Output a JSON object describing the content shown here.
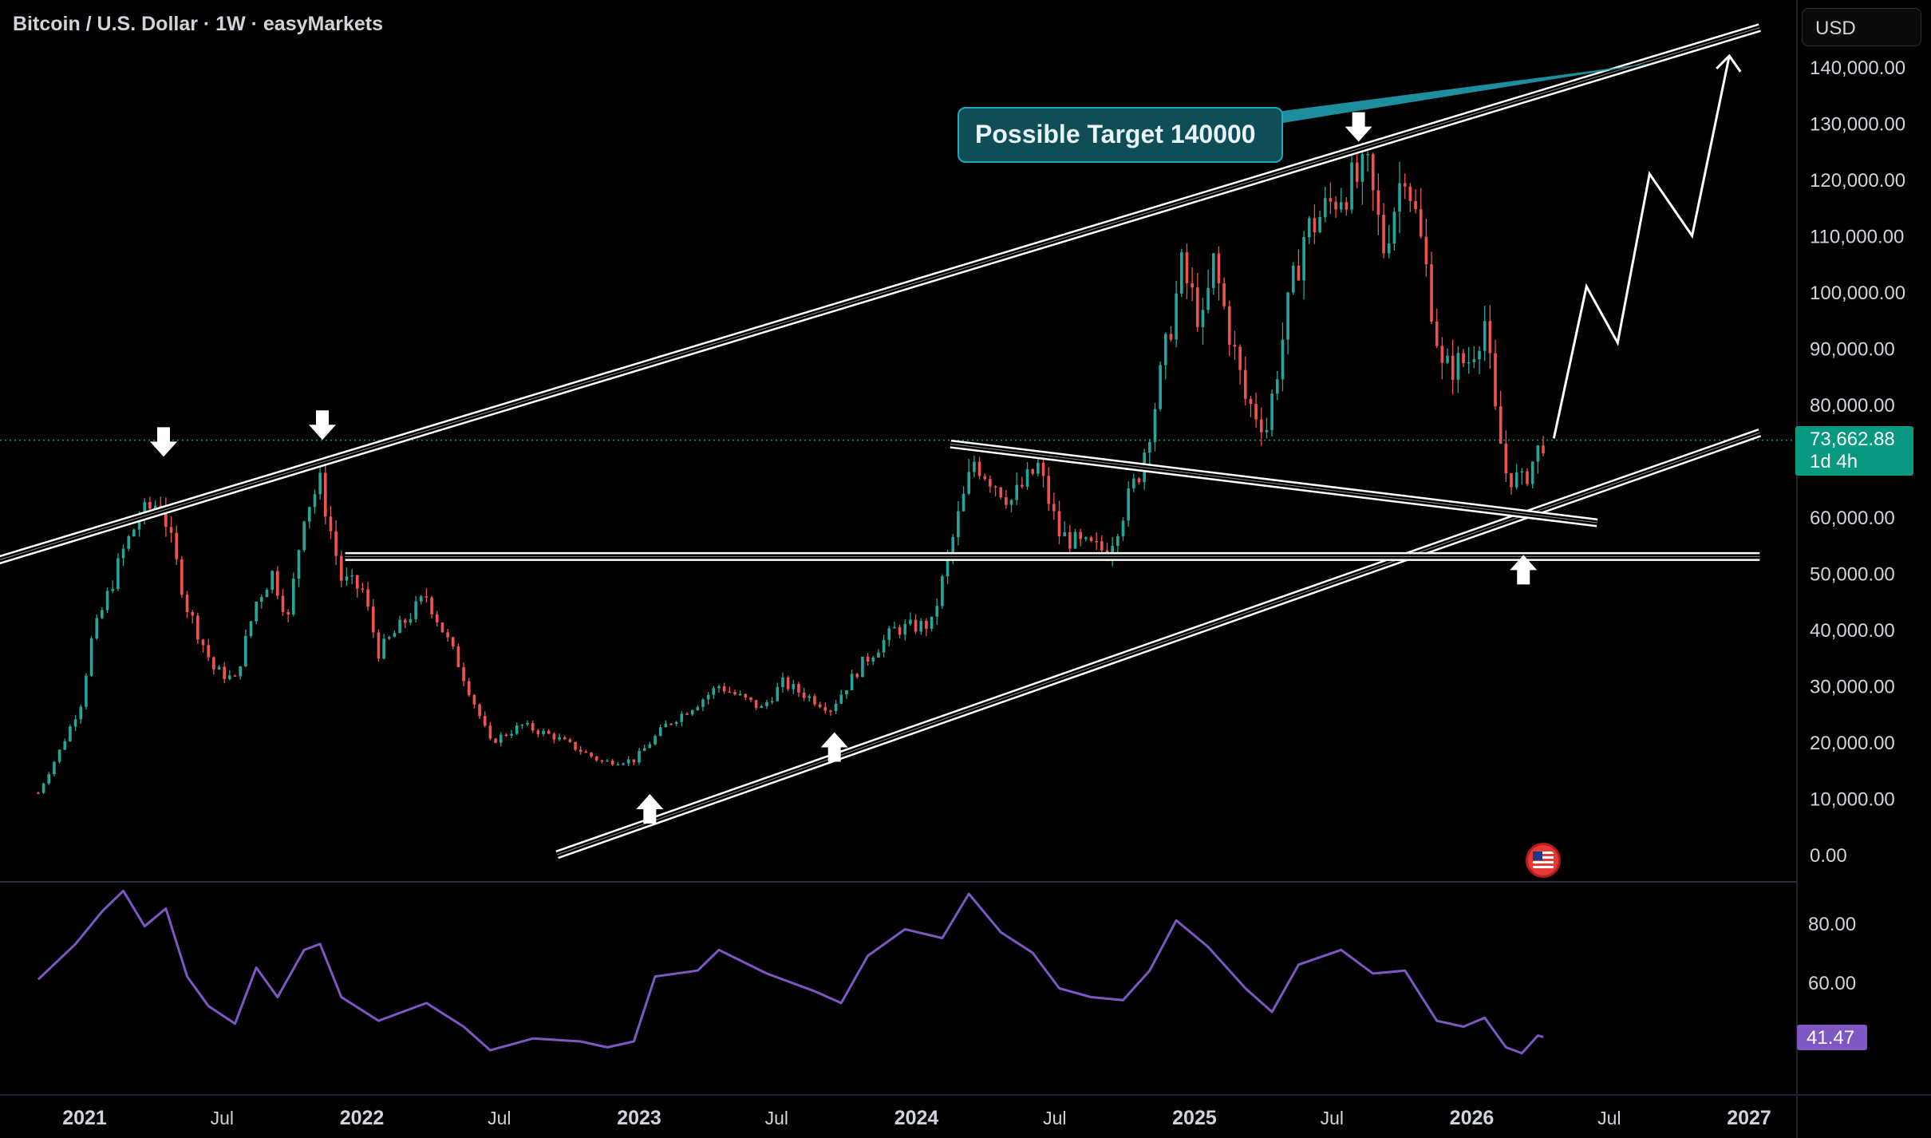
{
  "header": {
    "title": "Bitcoin / U.S. Dollar · 1W · easyMarkets"
  },
  "toolbar": {
    "currency_label": "USD"
  },
  "annotation": {
    "callout_text": "Possible Target 140000"
  },
  "price_badge": {
    "price": "73,662.88",
    "countdown": "1d 4h"
  },
  "rsi_badge": {
    "value": "41.47"
  },
  "colors": {
    "up": "#26a69a",
    "down": "#ef5350",
    "rsi": "#7e57c2",
    "badge_green": "#089981",
    "callout_bg": "#0f4d57",
    "callout_border": "#22a7b8"
  },
  "icons": [
    "us-flag-icon",
    "arrow-down-icon",
    "arrow-up-icon"
  ],
  "chart_data": {
    "type": "candlestick",
    "title": "Bitcoin / U.S. Dollar · 1W · easyMarkets",
    "price_axis": {
      "ticks": [
        "140,000.00",
        "130,000.00",
        "120,000.00",
        "110,000.00",
        "100,000.00",
        "90,000.00",
        "80,000.00",
        "70,000.00",
        "60,000.00",
        "50,000.00",
        "40,000.00",
        "30,000.00",
        "20,000.00",
        "10,000.00",
        "0.00"
      ],
      "ylim": [
        0,
        145000
      ]
    },
    "time_axis": {
      "ticks": [
        "2021",
        "Jul",
        "2022",
        "Jul",
        "2023",
        "Jul",
        "2024",
        "Jul",
        "2025",
        "Jul",
        "2026",
        "Jul",
        "2027"
      ]
    },
    "last_price": 73662.88,
    "price_path": [
      [
        "2020-11-01",
        11000
      ],
      [
        "2020-12-01",
        19000
      ],
      [
        "2020-12-27",
        27000
      ],
      [
        "2021-01-10",
        38000
      ],
      [
        "2021-02-21",
        54000
      ],
      [
        "2021-03-14",
        60000
      ],
      [
        "2021-04-11",
        63000
      ],
      [
        "2021-05-16",
        44000
      ],
      [
        "2021-06-20",
        33000
      ],
      [
        "2021-07-18",
        31000
      ],
      [
        "2021-08-15",
        45000
      ],
      [
        "2021-09-05",
        50000
      ],
      [
        "2021-09-26",
        42000
      ],
      [
        "2021-10-17",
        61000
      ],
      [
        "2021-11-07",
        66000
      ],
      [
        "2021-12-05",
        49000
      ],
      [
        "2022-01-02",
        47000
      ],
      [
        "2022-01-23",
        36000
      ],
      [
        "2022-03-27",
        46000
      ],
      [
        "2022-05-08",
        34000
      ],
      [
        "2022-06-19",
        20000
      ],
      [
        "2022-07-31",
        23000
      ],
      [
        "2022-09-11",
        21000
      ],
      [
        "2022-11-13",
        16500
      ],
      [
        "2022-12-25",
        16800
      ],
      [
        "2023-02-05",
        23000
      ],
      [
        "2023-03-19",
        27000
      ],
      [
        "2023-04-16",
        30000
      ],
      [
        "2023-06-11",
        26000
      ],
      [
        "2023-07-09",
        30500
      ],
      [
        "2023-09-10",
        26000
      ],
      [
        "2023-10-22",
        34000
      ],
      [
        "2023-12-03",
        40000
      ],
      [
        "2024-01-21",
        41000
      ],
      [
        "2024-02-25",
        60000
      ],
      [
        "2024-03-17",
        70000
      ],
      [
        "2024-05-05",
        63000
      ],
      [
        "2024-06-09",
        69000
      ],
      [
        "2024-07-07",
        57000
      ],
      [
        "2024-08-04",
        55000
      ],
      [
        "2024-09-08",
        54000
      ],
      [
        "2024-10-20",
        68000
      ],
      [
        "2024-11-10",
        80000
      ],
      [
        "2024-12-15",
        104000
      ],
      [
        "2025-01-12",
        94000
      ],
      [
        "2025-01-26",
        105000
      ],
      [
        "2025-03-09",
        81000
      ],
      [
        "2025-04-06",
        76000
      ],
      [
        "2025-05-04",
        97000
      ],
      [
        "2025-05-25",
        110000
      ],
      [
        "2025-07-13",
        118000
      ],
      [
        "2025-08-17",
        121000
      ],
      [
        "2025-09-07",
        108000
      ],
      [
        "2025-10-05",
        123000
      ],
      [
        "2025-11-02",
        104000
      ],
      [
        "2025-11-23",
        86000
      ],
      [
        "2025-12-28",
        88000
      ],
      [
        "2026-01-18",
        95000
      ],
      [
        "2026-02-01",
        78000
      ],
      [
        "2026-02-15",
        68000
      ],
      [
        "2026-03-08",
        66000
      ],
      [
        "2026-04-05",
        73663
      ]
    ],
    "projection_path": [
      [
        "2026-04-19",
        74000
      ],
      [
        "2026-06-01",
        101000
      ],
      [
        "2026-07-12",
        91000
      ],
      [
        "2026-08-23",
        121000
      ],
      [
        "2026-10-18",
        110000
      ],
      [
        "2026-12-06",
        142000
      ]
    ],
    "trendlines": [
      {
        "name": "upper-channel",
        "p1": [
          "2020-09-01",
          52000
        ],
        "p2": [
          "2027-01-15",
          147000
        ]
      },
      {
        "name": "lower-channel",
        "p1": [
          "2022-09-15",
          0
        ],
        "p2": [
          "2027-01-15",
          75000
        ]
      },
      {
        "name": "descending-triangle",
        "p1": [
          "2024-02-15",
          73000
        ],
        "p2": [
          "2026-06-15",
          59000
        ]
      },
      {
        "name": "horizontal-support",
        "p1": [
          "2021-12-10",
          53000
        ],
        "p2": [
          "2027-01-15",
          53000
        ]
      }
    ],
    "markers": [
      {
        "type": "down",
        "date": "2021-04-15",
        "price": 72000
      },
      {
        "type": "down",
        "date": "2021-11-10",
        "price": 75000
      },
      {
        "type": "down",
        "date": "2025-08-05",
        "price": 128000
      },
      {
        "type": "up",
        "date": "2023-01-15",
        "price": 9500
      },
      {
        "type": "up",
        "date": "2023-09-15",
        "price": 20500
      },
      {
        "type": "up",
        "date": "2026-03-10",
        "price": 52000
      }
    ],
    "rsi": {
      "ticks": [
        "80.00",
        "60.00"
      ],
      "ylim": [
        33,
        96
      ],
      "last": 41.47,
      "series": [
        [
          "2020-11-01",
          61
        ],
        [
          "2020-12-20",
          73
        ],
        [
          "2021-01-24",
          84
        ],
        [
          "2021-02-21",
          91
        ],
        [
          "2021-03-21",
          79
        ],
        [
          "2021-04-18",
          85
        ],
        [
          "2021-05-16",
          62
        ],
        [
          "2021-06-13",
          52
        ],
        [
          "2021-07-18",
          46
        ],
        [
          "2021-08-15",
          65
        ],
        [
          "2021-09-12",
          55
        ],
        [
          "2021-10-17",
          71
        ],
        [
          "2021-11-07",
          73
        ],
        [
          "2021-12-05",
          55
        ],
        [
          "2022-01-23",
          47
        ],
        [
          "2022-03-27",
          53
        ],
        [
          "2022-05-15",
          45
        ],
        [
          "2022-06-19",
          37
        ],
        [
          "2022-08-14",
          41
        ],
        [
          "2022-10-16",
          40
        ],
        [
          "2022-11-20",
          38
        ],
        [
          "2022-12-25",
          40
        ],
        [
          "2023-01-22",
          62
        ],
        [
          "2023-03-19",
          64
        ],
        [
          "2023-04-16",
          71
        ],
        [
          "2023-06-18",
          63
        ],
        [
          "2023-08-20",
          57
        ],
        [
          "2023-09-24",
          53
        ],
        [
          "2023-10-29",
          69
        ],
        [
          "2023-12-17",
          78
        ],
        [
          "2024-02-04",
          75
        ],
        [
          "2024-03-10",
          90
        ],
        [
          "2024-04-21",
          77
        ],
        [
          "2024-06-02",
          70
        ],
        [
          "2024-07-07",
          58
        ],
        [
          "2024-08-18",
          55
        ],
        [
          "2024-09-29",
          54
        ],
        [
          "2024-11-03",
          64
        ],
        [
          "2024-12-08",
          81
        ],
        [
          "2025-01-19",
          72
        ],
        [
          "2025-03-09",
          58
        ],
        [
          "2025-04-13",
          50
        ],
        [
          "2025-05-18",
          66
        ],
        [
          "2025-07-13",
          71
        ],
        [
          "2025-08-24",
          63
        ],
        [
          "2025-10-05",
          64
        ],
        [
          "2025-11-16",
          47
        ],
        [
          "2025-12-21",
          45
        ],
        [
          "2026-01-18",
          48
        ],
        [
          "2026-02-15",
          38
        ],
        [
          "2026-03-08",
          36
        ],
        [
          "2026-03-29",
          42
        ],
        [
          "2026-04-05",
          41.47
        ]
      ]
    }
  }
}
